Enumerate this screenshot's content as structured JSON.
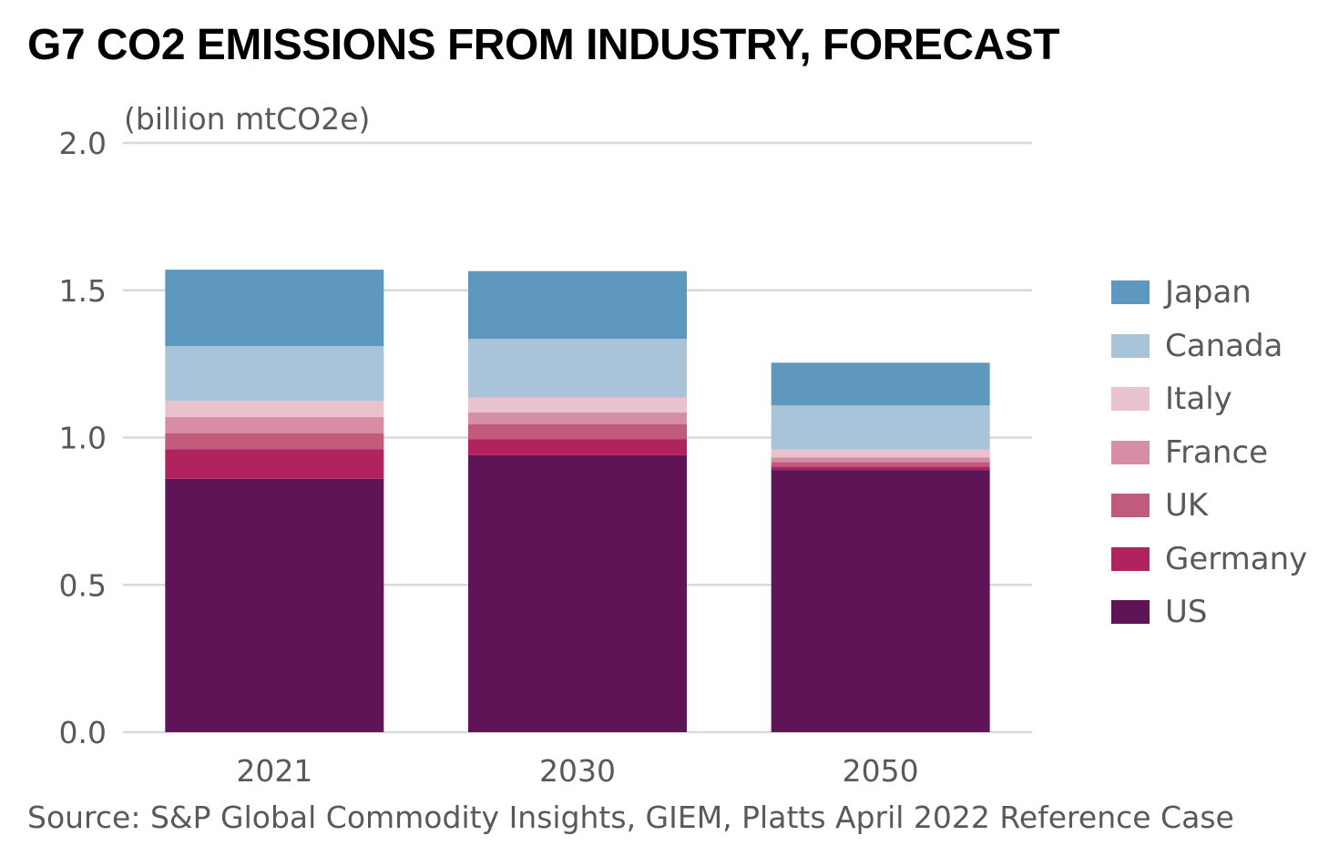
{
  "title": "G7 CO2 EMISSIONS FROM INDUSTRY, FORECAST",
  "source": "Source: S&P Global Commodity Insights, GIEM, Platts April 2022 Reference Case",
  "chart_data": {
    "type": "bar",
    "stacked": true,
    "title": "G7 CO2 EMISSIONS FROM INDUSTRY, FORECAST",
    "ylabel": "(billion mtCO2e)",
    "xlabel": "",
    "categories": [
      "2021",
      "2030",
      "2050"
    ],
    "ylim": [
      0,
      2.0
    ],
    "yticks": [
      "0.0",
      "0.5",
      "1.0",
      "1.5",
      "2.0"
    ],
    "grid": true,
    "legend_position": "right",
    "series": [
      {
        "name": "US",
        "color": "#5f1457",
        "values": [
          0.86,
          0.94,
          0.89
        ]
      },
      {
        "name": "Germany",
        "color": "#b0235f",
        "values": [
          0.1,
          0.055,
          0.012
        ]
      },
      {
        "name": "UK",
        "color": "#c05b7c",
        "values": [
          0.055,
          0.05,
          0.015
        ]
      },
      {
        "name": "France",
        "color": "#d68ea5",
        "values": [
          0.055,
          0.04,
          0.016
        ]
      },
      {
        "name": "Italy",
        "color": "#e8c2cd",
        "values": [
          0.055,
          0.05,
          0.026
        ]
      },
      {
        "name": "Canada",
        "color": "#a9c4d9",
        "values": [
          0.185,
          0.2,
          0.15
        ]
      },
      {
        "name": "Japan",
        "color": "#5e98be",
        "values": [
          0.26,
          0.23,
          0.145
        ]
      }
    ]
  }
}
